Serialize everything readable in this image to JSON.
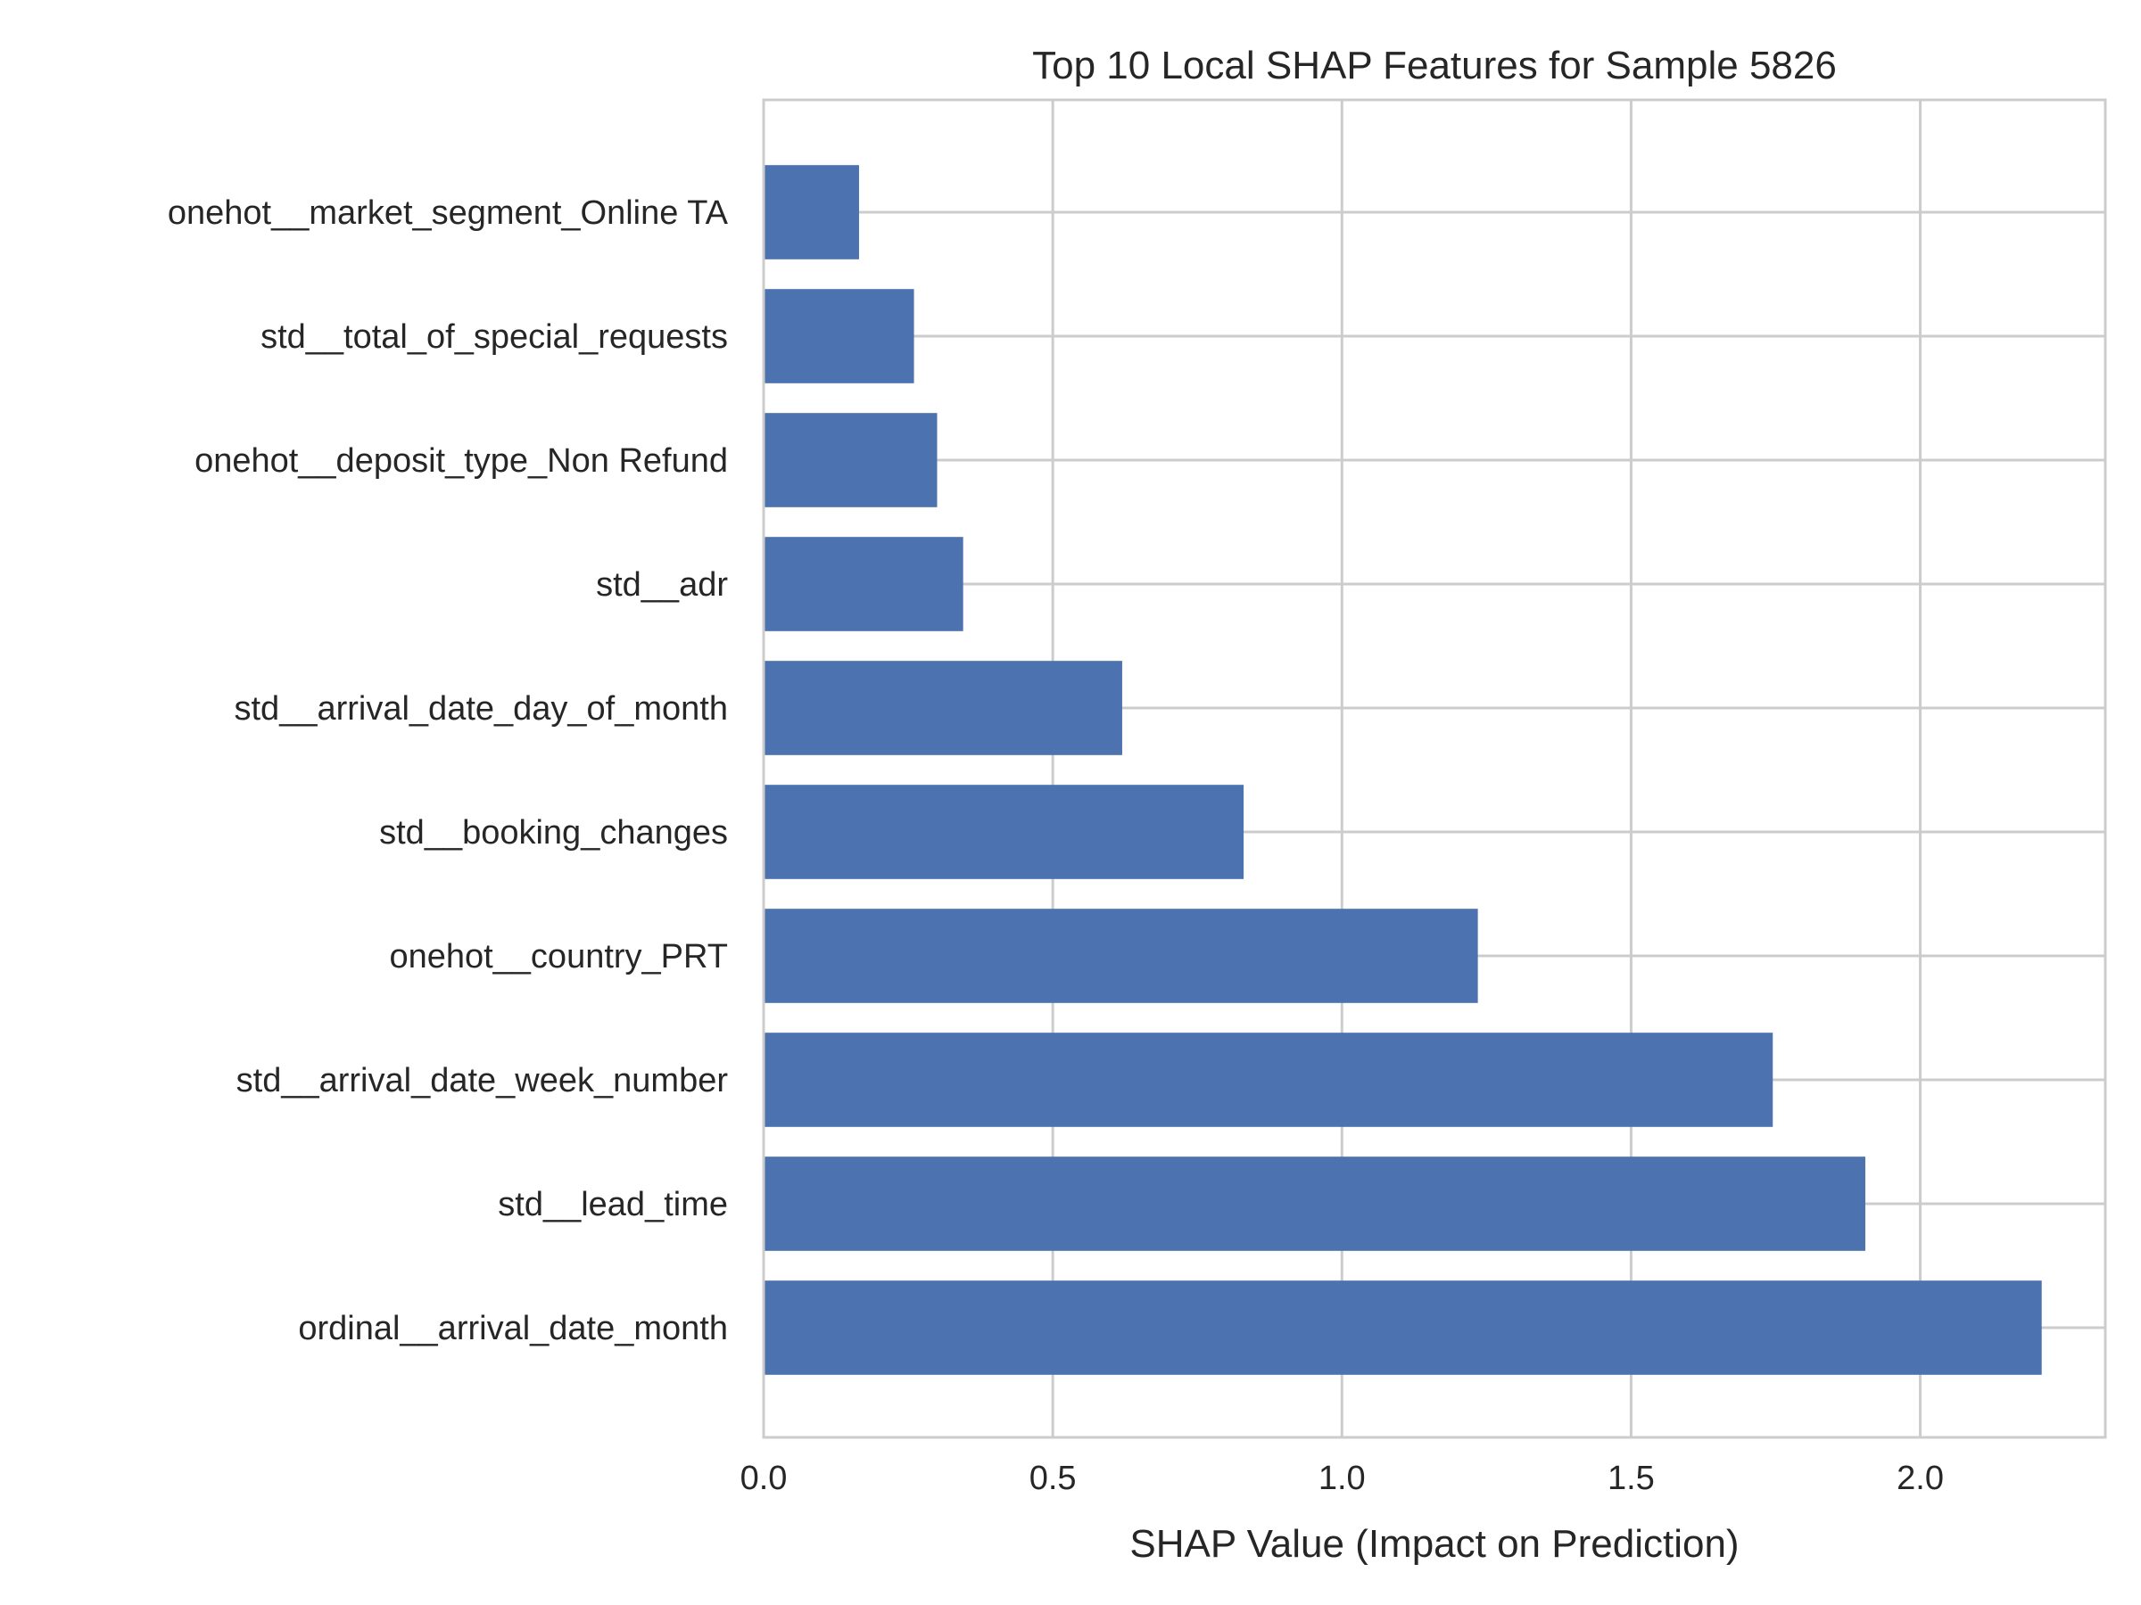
{
  "chart_data": {
    "type": "bar",
    "orientation": "horizontal",
    "title": "Top 10 Local SHAP Features for Sample 5826",
    "xlabel": "SHAP Value (Impact on Prediction)",
    "ylabel": "",
    "categories": [
      "onehot__market_segment_Online TA",
      "std__total_of_special_requests",
      "onehot__deposit_type_Non Refund",
      "std__adr",
      "std__arrival_date_day_of_month",
      "std__booking_changes",
      "onehot__country_PRT",
      "std__arrival_date_week_number",
      "std__lead_time",
      "ordinal__arrival_date_month"
    ],
    "values": [
      0.165,
      0.26,
      0.3,
      0.345,
      0.62,
      0.83,
      1.235,
      1.745,
      1.905,
      2.21
    ],
    "xlim": [
      0,
      2.32
    ],
    "xticks": [
      0.0,
      0.5,
      1.0,
      1.5,
      2.0
    ],
    "xtick_labels": [
      "0.0",
      "0.5",
      "1.0",
      "1.5",
      "2.0"
    ],
    "grid": true,
    "bar_color": "#4c72b0",
    "grid_color": "#cccccc"
  }
}
